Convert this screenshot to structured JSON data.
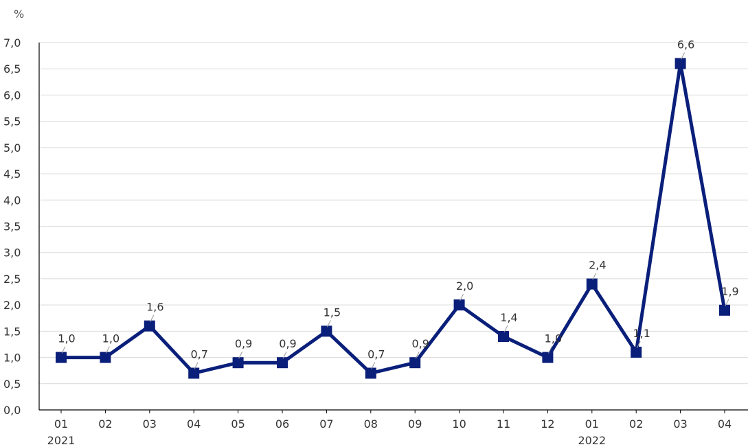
{
  "chart_data": {
    "type": "line",
    "unit_label": "%",
    "categories": [
      "01",
      "02",
      "03",
      "04",
      "05",
      "06",
      "07",
      "08",
      "09",
      "10",
      "11",
      "12",
      "01",
      "02",
      "03",
      "04"
    ],
    "year_labels": [
      {
        "index": 0,
        "label": "2021"
      },
      {
        "index": 12,
        "label": "2022"
      }
    ],
    "series": [
      {
        "values": [
          1.0,
          1.0,
          1.6,
          0.7,
          0.9,
          0.9,
          1.5,
          0.7,
          0.9,
          2.0,
          1.4,
          1.0,
          2.4,
          1.1,
          6.6,
          1.9
        ],
        "data_labels": [
          "1,0",
          "1,0",
          "1,6",
          "0,7",
          "0,9",
          "0,9",
          "1,5",
          "0,7",
          "0,9",
          "2,0",
          "1,4",
          "1,0",
          "2,4",
          "1,1",
          "6,6",
          "1,9"
        ],
        "color": "#0a1f7a"
      }
    ],
    "ylim": [
      0,
      7
    ],
    "yticks": [
      0,
      0.5,
      1,
      1.5,
      2,
      2.5,
      3,
      3.5,
      4,
      4.5,
      5,
      5.5,
      6,
      6.5,
      7
    ],
    "ytick_labels": [
      "0,0",
      "0,5",
      "1,0",
      "1,5",
      "2,0",
      "2,5",
      "3,0",
      "3,5",
      "4,0",
      "4,5",
      "5,0",
      "5,5",
      "6,0",
      "6,5",
      "7,0"
    ],
    "grid": true,
    "gridline_color": "#d9d9d9",
    "axis_color": "#000000",
    "label_color": "#333333"
  }
}
